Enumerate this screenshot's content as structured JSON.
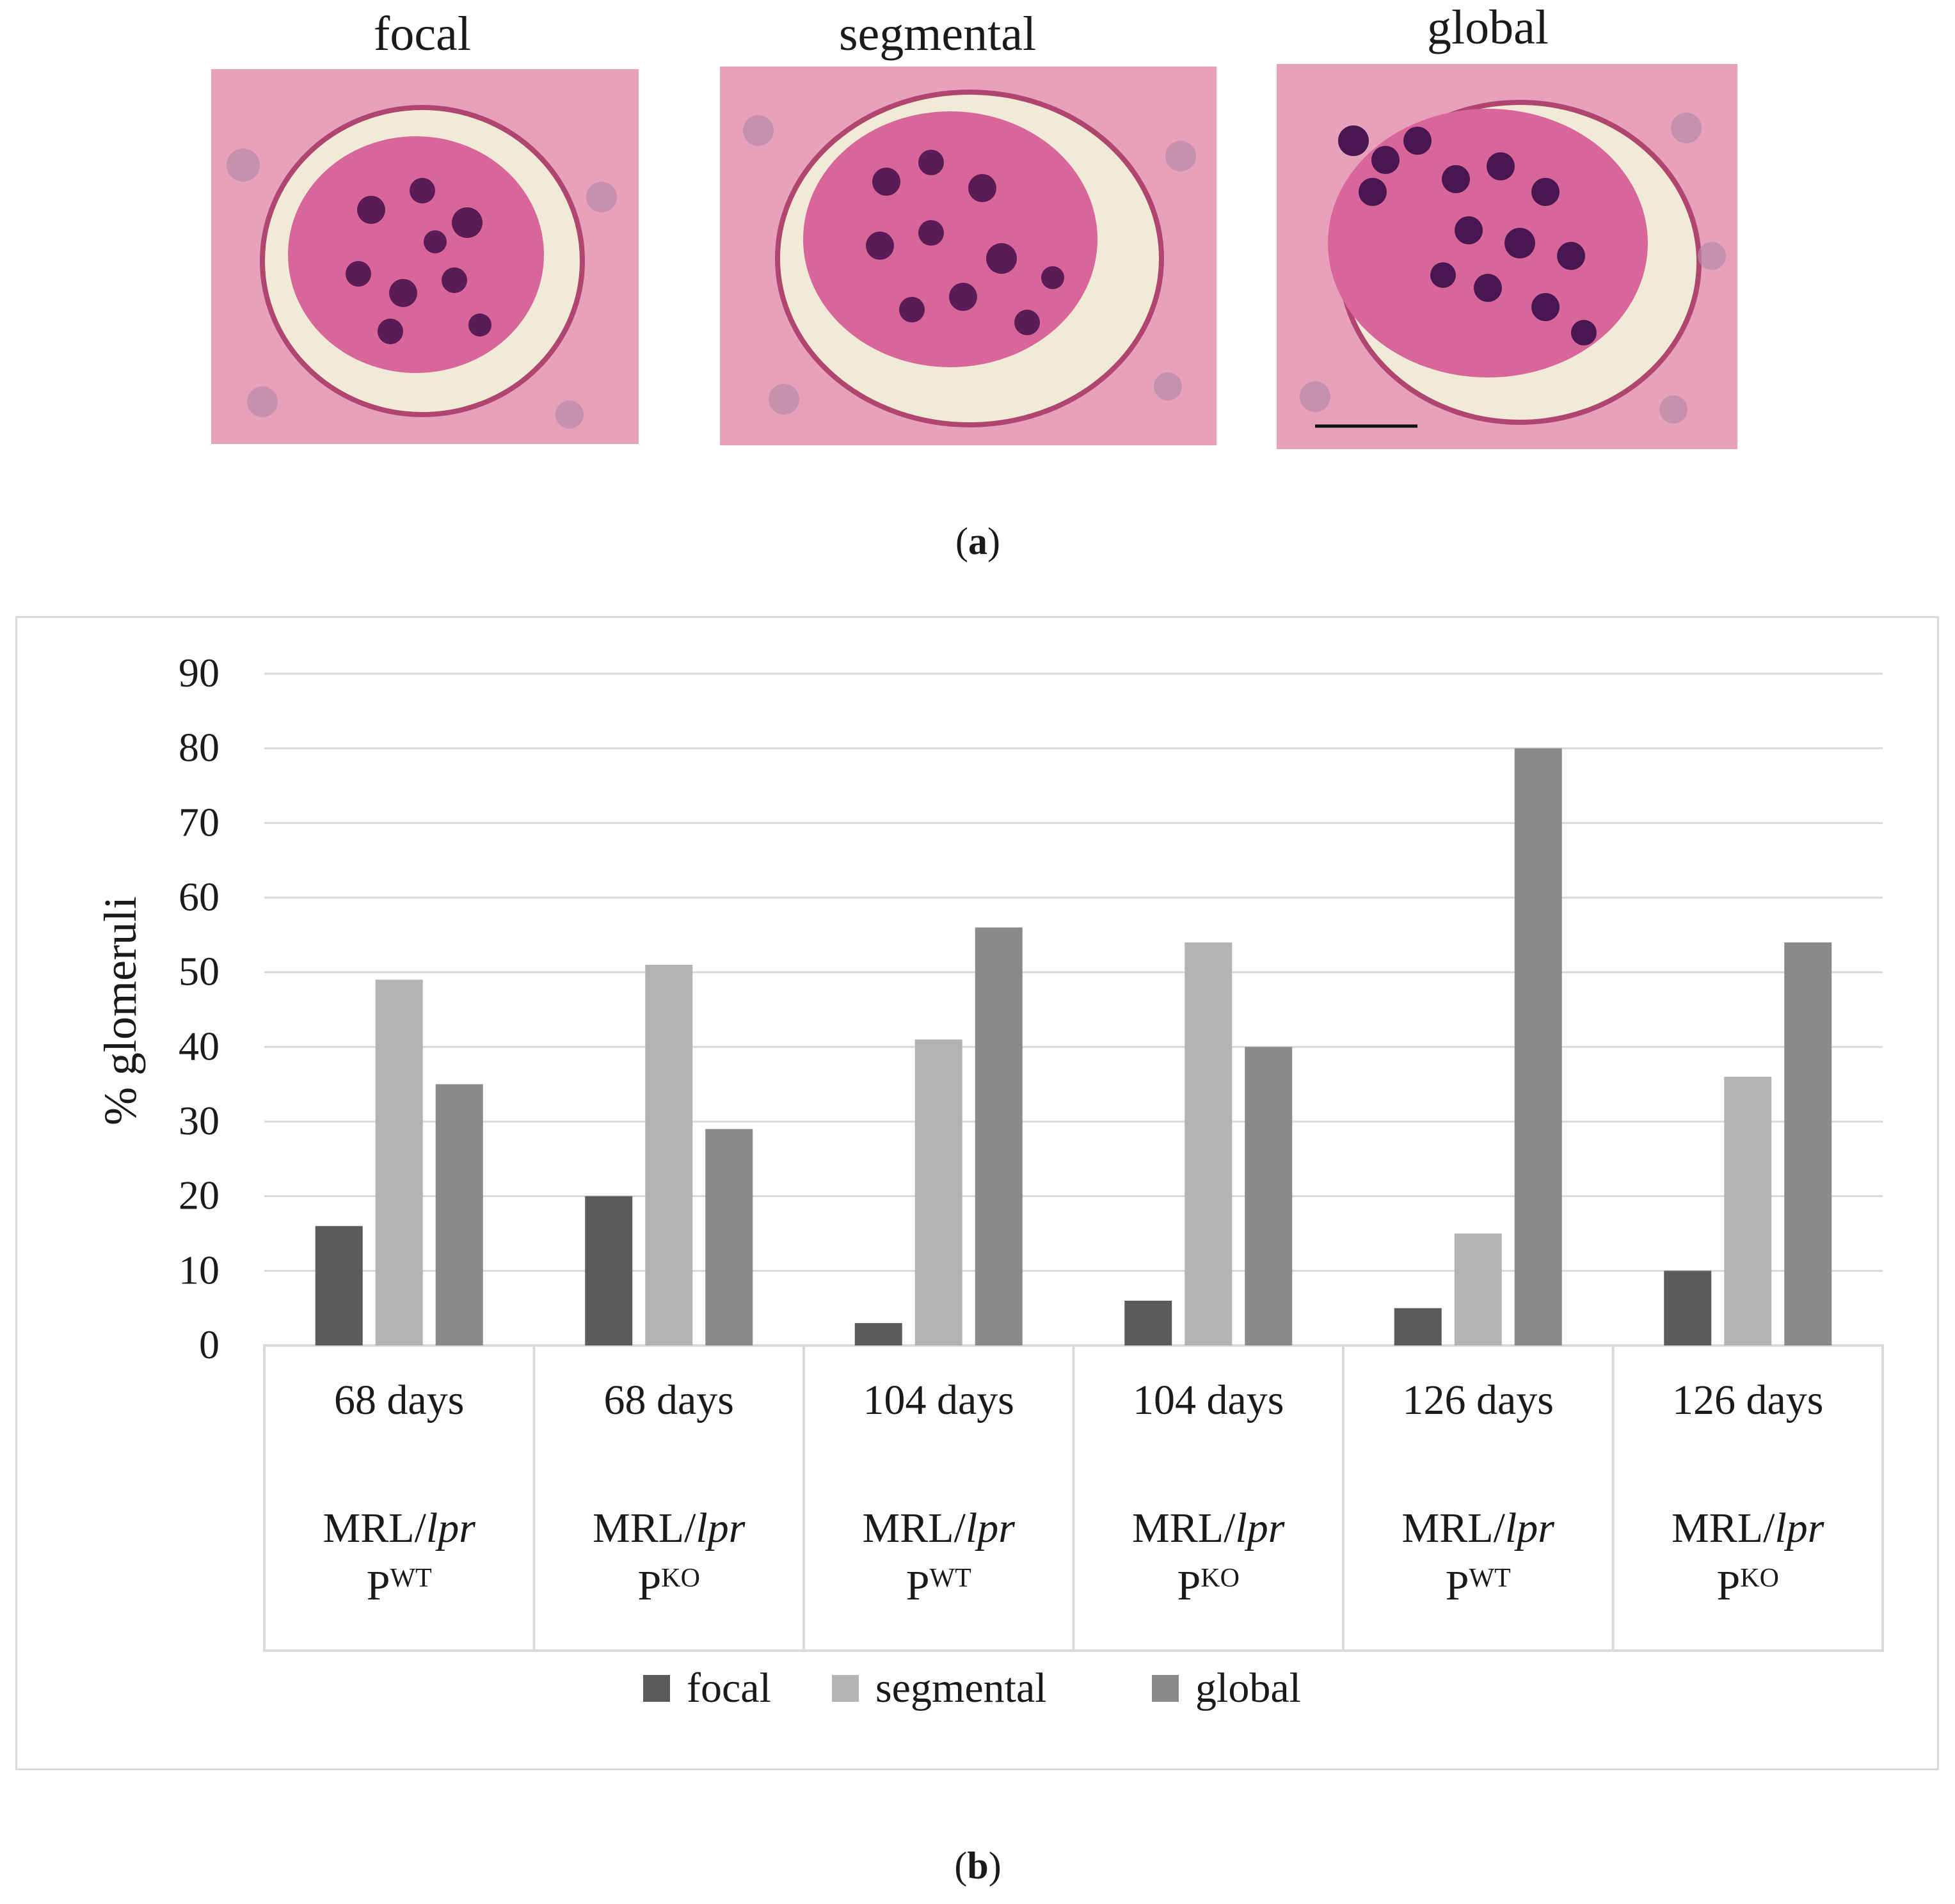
{
  "panel_a": {
    "images": [
      {
        "title": "focal"
      },
      {
        "title": "segmental"
      },
      {
        "title": "global"
      }
    ],
    "caption_letter": "a"
  },
  "panel_b": {
    "caption_letter": "b"
  },
  "chart_data": {
    "type": "bar",
    "ylabel": "% glomeruli",
    "ylim": [
      0,
      90
    ],
    "yticks": [
      0,
      10,
      20,
      30,
      40,
      50,
      60,
      70,
      80,
      90
    ],
    "grid": true,
    "legend_position": "bottom",
    "categories": [
      {
        "days": "68 days",
        "strain": "MRL/",
        "strain_italic": "lpr",
        "genotype": "P",
        "genotype_sup": "WT"
      },
      {
        "days": "68 days",
        "strain": "MRL/",
        "strain_italic": "lpr",
        "genotype": "P",
        "genotype_sup": "KO"
      },
      {
        "days": "104 days",
        "strain": "MRL/",
        "strain_italic": "lpr",
        "genotype": "P",
        "genotype_sup": "WT"
      },
      {
        "days": "104 days",
        "strain": "MRL/",
        "strain_italic": "lpr",
        "genotype": "P",
        "genotype_sup": "KO"
      },
      {
        "days": "126 days",
        "strain": "MRL/",
        "strain_italic": "lpr",
        "genotype": "P",
        "genotype_sup": "WT"
      },
      {
        "days": "126 days",
        "strain": "MRL/",
        "strain_italic": "lpr",
        "genotype": "P",
        "genotype_sup": "KO"
      }
    ],
    "series": [
      {
        "name": "focal",
        "color": "#5b5b5b",
        "values": [
          16,
          20,
          3,
          6,
          5,
          10
        ]
      },
      {
        "name": "segmental",
        "color": "#b3b3b3",
        "values": [
          49,
          51,
          41,
          54,
          15,
          36
        ]
      },
      {
        "name": "global",
        "color": "#8a8a8a",
        "values": [
          35,
          29,
          56,
          40,
          80,
          54
        ]
      }
    ]
  }
}
